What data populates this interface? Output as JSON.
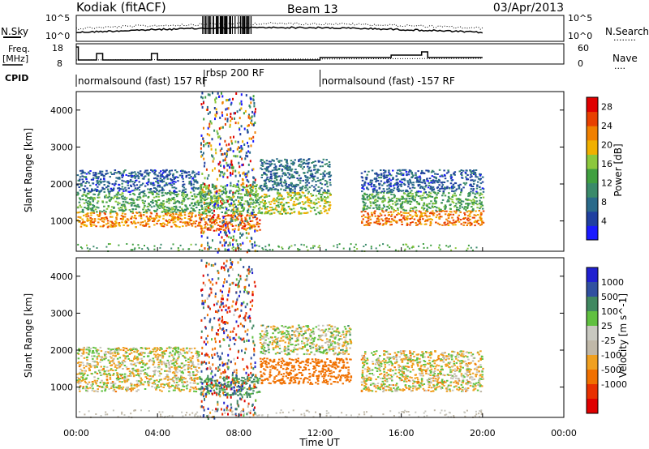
{
  "header": {
    "station": "Kodiak (fitACF)",
    "beam": "Beam 13",
    "date": "03/Apr/2013"
  },
  "left_labels": {
    "nsky": "N.Sky",
    "freq_line1": "Freq.",
    "freq_line2": "[MHz]",
    "cpid": "CPID"
  },
  "right_labels": {
    "nsearch": "N.Search",
    "nsearch_dots": "........",
    "nave": "Nave",
    "nave_dots": "...."
  },
  "noise_axis": {
    "top": "10^5",
    "bottom": "10^0"
  },
  "freq_axis": {
    "top": "18",
    "bottom": "8"
  },
  "nave_axis": {
    "top": "60",
    "bottom": "0"
  },
  "cpid_labels": [
    {
      "text": "normalsound (fast) 157 RF",
      "start": 0.0
    },
    {
      "text": "rbsp 200 RF",
      "start": 6.3
    },
    {
      "text": "normalsound (fast) -157 RF",
      "start": 12.0
    }
  ],
  "colors": {
    "power_scale": [
      "#1a1aff",
      "#2040a0",
      "#2a6a8a",
      "#3a8a6a",
      "#40a040",
      "#8cc83c",
      "#f0b000",
      "#f08000",
      "#e84000",
      "#e00000"
    ],
    "velocity_scale": [
      "#2020d0",
      "#3050a0",
      "#408860",
      "#60c040",
      "#c8c8c0",
      "#c0b8a8",
      "#f0a020",
      "#f07000",
      "#e83000",
      "#e00000"
    ]
  },
  "chart_data": [
    {
      "type": "heatmap",
      "name": "power_panel",
      "ylabel": "Slant Range [km]",
      "x_ticks": [
        "00:00",
        "04:00",
        "08:00",
        "12:00",
        "16:00",
        "20:00",
        "00:00"
      ],
      "y_ticks": [
        1000,
        2000,
        3000,
        4000
      ],
      "xlim_hours": [
        0,
        24
      ],
      "ylim_km": [
        180,
        4500
      ],
      "colorbar": {
        "label": "Power [dB]",
        "ticks": [
          4,
          8,
          12,
          16,
          20,
          24,
          28
        ],
        "range": [
          0,
          30
        ]
      },
      "bands": [
        {
          "x": [
            0.0,
            6.0
          ],
          "y": [
            850,
            1250
          ],
          "level": 22
        },
        {
          "x": [
            0.0,
            6.0
          ],
          "y": [
            1250,
            1800
          ],
          "level": 13
        },
        {
          "x": [
            0.0,
            6.0
          ],
          "y": [
            1800,
            2400
          ],
          "level": 6
        },
        {
          "x": [
            6.0,
            9.0
          ],
          "y": [
            750,
            1200
          ],
          "level": 24
        },
        {
          "x": [
            6.0,
            9.0
          ],
          "y": [
            1200,
            2000
          ],
          "level": 14
        },
        {
          "x": [
            9.0,
            12.5
          ],
          "y": [
            1200,
            1800
          ],
          "level": 17
        },
        {
          "x": [
            9.0,
            12.5
          ],
          "y": [
            1800,
            2700
          ],
          "level": 8
        },
        {
          "x": [
            14.0,
            20.0
          ],
          "y": [
            900,
            1300
          ],
          "level": 23
        },
        {
          "x": [
            14.0,
            20.0
          ],
          "y": [
            1300,
            1800
          ],
          "level": 13
        },
        {
          "x": [
            14.0,
            20.0
          ],
          "y": [
            1800,
            2400
          ],
          "level": 6
        }
      ]
    },
    {
      "type": "heatmap",
      "name": "velocity_panel",
      "ylabel": "Slant Range [km]",
      "xlabel": "Time UT",
      "x_ticks": [
        "00:00",
        "04:00",
        "08:00",
        "12:00",
        "16:00",
        "20:00",
        "00:00"
      ],
      "y_ticks": [
        1000,
        2000,
        3000,
        4000
      ],
      "xlim_hours": [
        0,
        24
      ],
      "ylim_km": [
        180,
        4500
      ],
      "colorbar": {
        "label": "Velocity [m s^-1]",
        "ticks": [
          1000,
          500,
          100,
          25,
          -25,
          -100,
          -500,
          -1000
        ]
      },
      "bands": [
        {
          "x": [
            0.0,
            6.0
          ],
          "y": [
            900,
            2100
          ],
          "level": -10
        },
        {
          "x": [
            6.0,
            9.0
          ],
          "y": [
            800,
            1300
          ],
          "level": 150
        },
        {
          "x": [
            9.0,
            12.0
          ],
          "y": [
            1100,
            1800
          ],
          "level": -200
        },
        {
          "x": [
            12.0,
            13.5
          ],
          "y": [
            1100,
            1800
          ],
          "level": -300
        },
        {
          "x": [
            9.0,
            13.5
          ],
          "y": [
            1900,
            2700
          ],
          "level": 10
        },
        {
          "x": [
            14.0,
            20.0
          ],
          "y": [
            900,
            2000
          ],
          "level": -10
        }
      ]
    }
  ]
}
